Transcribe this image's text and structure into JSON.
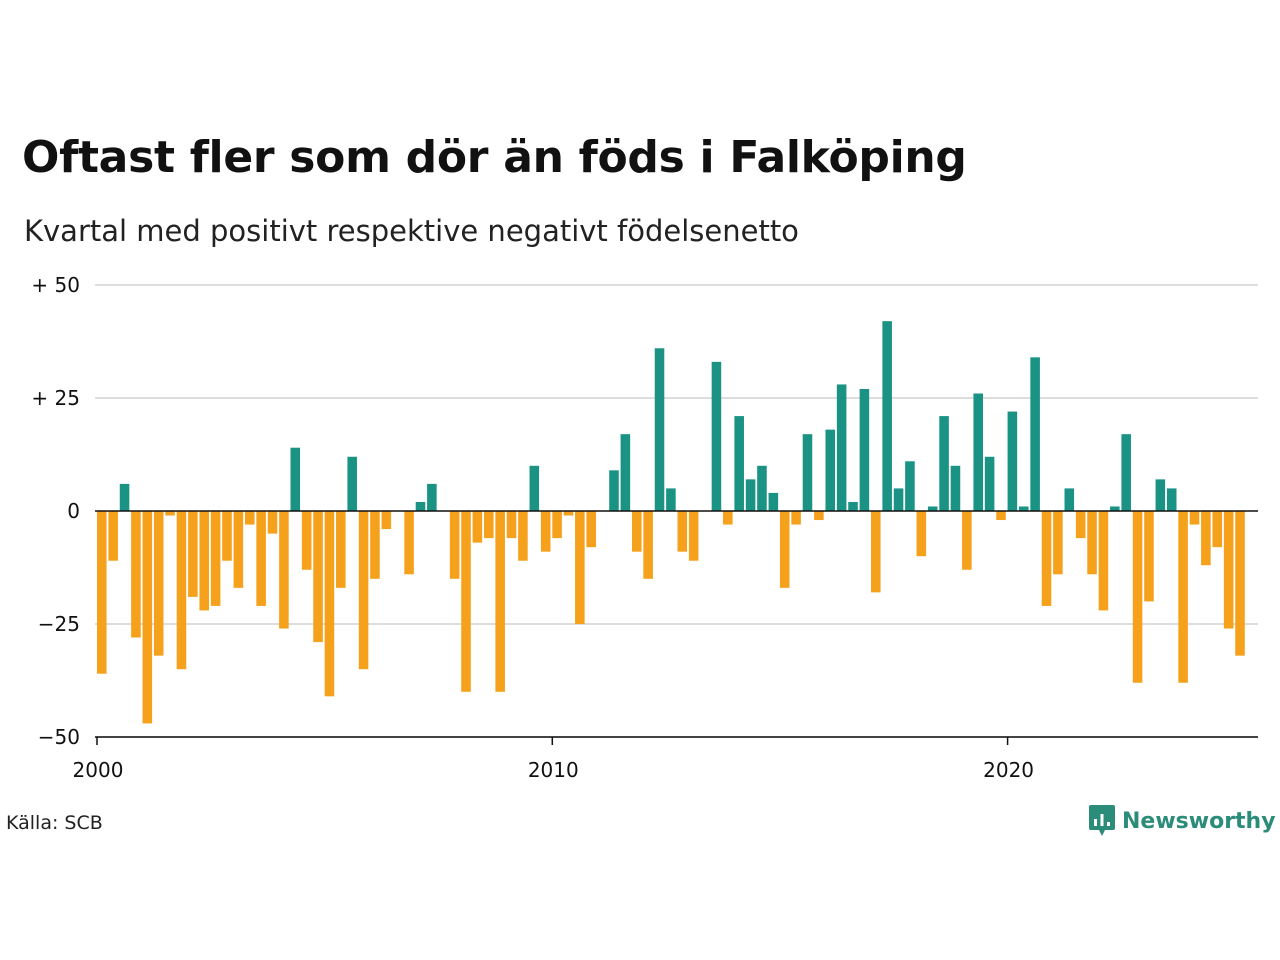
{
  "title": "Oftast fler som dör än föds i Falköping",
  "subtitle": "Kvartal med positivt respektive negativt födelsenetto",
  "source": "Källa: SCB",
  "brand": "Newsworthy",
  "colors": {
    "positive": "#1a9385",
    "negative": "#f5a11c",
    "grid": "#dddddd",
    "zero_line": "#111111",
    "brand": "#2b8c79"
  },
  "chart_data": {
    "type": "bar",
    "x_start": "2000 Q1",
    "x_ticks": [
      {
        "label": "2000",
        "quarter_index": 0
      },
      {
        "label": "2010",
        "quarter_index": 40
      },
      {
        "label": "2020",
        "quarter_index": 80
      }
    ],
    "y_ticks": [
      {
        "label": "+ 50",
        "value": 50
      },
      {
        "label": "+ 25",
        "value": 25
      },
      {
        "label": "0",
        "value": 0
      },
      {
        "label": "−25",
        "value": -25
      },
      {
        "label": "−50",
        "value": -50
      }
    ],
    "ylim": [
      -50,
      50
    ],
    "grid": true,
    "values": [
      -36,
      -11,
      6,
      -28,
      -47,
      -32,
      -1,
      -35,
      -19,
      -22,
      -21,
      -11,
      -17,
      -3,
      -21,
      -5,
      -26,
      14,
      -13,
      -29,
      -41,
      -17,
      12,
      -35,
      -15,
      -4,
      0,
      -14,
      2,
      6,
      0,
      -15,
      -40,
      -7,
      -6,
      -40,
      -6,
      -11,
      10,
      -9,
      -6,
      -1,
      -25,
      -8,
      0,
      9,
      17,
      -9,
      -15,
      36,
      5,
      -9,
      -11,
      0,
      33,
      -3,
      21,
      7,
      10,
      4,
      -17,
      -3,
      17,
      -2,
      18,
      28,
      2,
      27,
      -18,
      42,
      5,
      11,
      -10,
      1,
      21,
      10,
      -13,
      26,
      12,
      -2,
      22,
      1,
      34,
      -21,
      -14,
      5,
      -6,
      -14,
      -22,
      1,
      17,
      -38,
      -20,
      7,
      5,
      -38,
      -3,
      -12,
      -8,
      -26,
      -32
    ]
  }
}
